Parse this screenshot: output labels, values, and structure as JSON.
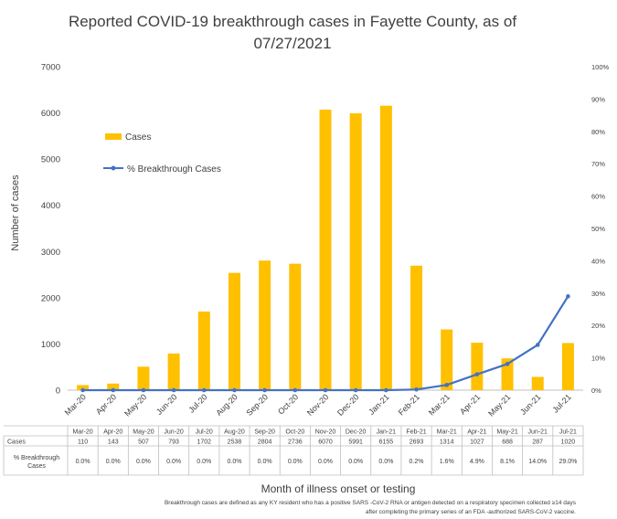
{
  "chart_data": {
    "type": "bar+line",
    "title": "Reported COVID-19 breakthrough cases in Fayette County, as of 07/27/2021",
    "categories": [
      "Mar-20",
      "Apr-20",
      "May-20",
      "Jun-20",
      "Jul-20",
      "Aug-20",
      "Sep-20",
      "Oct-20",
      "Nov-20",
      "Dec-20",
      "Jan-21",
      "Feb-21",
      "Mar-21",
      "Apr-21",
      "May-21",
      "Jun-21",
      "Jul-21"
    ],
    "series": [
      {
        "name": "Cases",
        "type": "bar",
        "axis": "left",
        "color": "#FFC000",
        "values": [
          110,
          143,
          507,
          793,
          1702,
          2538,
          2804,
          2736,
          6070,
          5991,
          6155,
          2693,
          1314,
          1027,
          688,
          287,
          1020
        ]
      },
      {
        "name": "% Breakthrough Cases",
        "type": "line",
        "axis": "right",
        "color": "#4472C4",
        "values": [
          0.0,
          0.0,
          0.0,
          0.0,
          0.0,
          0.0,
          0.0,
          0.0,
          0.0,
          0.0,
          0.0,
          0.2,
          1.6,
          4.9,
          8.1,
          14.0,
          29.0
        ]
      }
    ],
    "ylabel": "Number of cases",
    "xlabel": "Month of illness onset or testing",
    "ylim": [
      0,
      7000
    ],
    "yticks": [
      "0",
      "1000",
      "2000",
      "3000",
      "4000",
      "5000",
      "6000",
      "7000"
    ],
    "y2lim": [
      0,
      100
    ],
    "y2ticks": [
      "0%",
      "10%",
      "20%",
      "30%",
      "40%",
      "50%",
      "60%",
      "70%",
      "80%",
      "90%",
      "100%"
    ],
    "legend_placement": "upper-left inside plot",
    "grid": false,
    "table": {
      "row_labels": [
        "Cases",
        "% Breakthrough Cases"
      ],
      "cases_row": [
        "110",
        "143",
        "507",
        "793",
        "1702",
        "2538",
        "2804",
        "2736",
        "6070",
        "5991",
        "6155",
        "2693",
        "1314",
        "1027",
        "688",
        "287",
        "1020"
      ],
      "pct_row": [
        "0.0%",
        "0.0%",
        "0.0%",
        "0.0%",
        "0.0%",
        "0.0%",
        "0.0%",
        "0.0%",
        "0.0%",
        "0.0%",
        "0.0%",
        "0.2%",
        "1.6%",
        "4.9%",
        "8.1%",
        "14.0%",
        "29.0%"
      ]
    },
    "footnote": "Breakthrough cases are defined as any KY resident who has a positive SARS -CoV-2 RNA or antigen detected on a respiratory specimen collected ≥14 days after completing the primary series of an FDA -authorized SARS-CoV-2 vaccine."
  }
}
